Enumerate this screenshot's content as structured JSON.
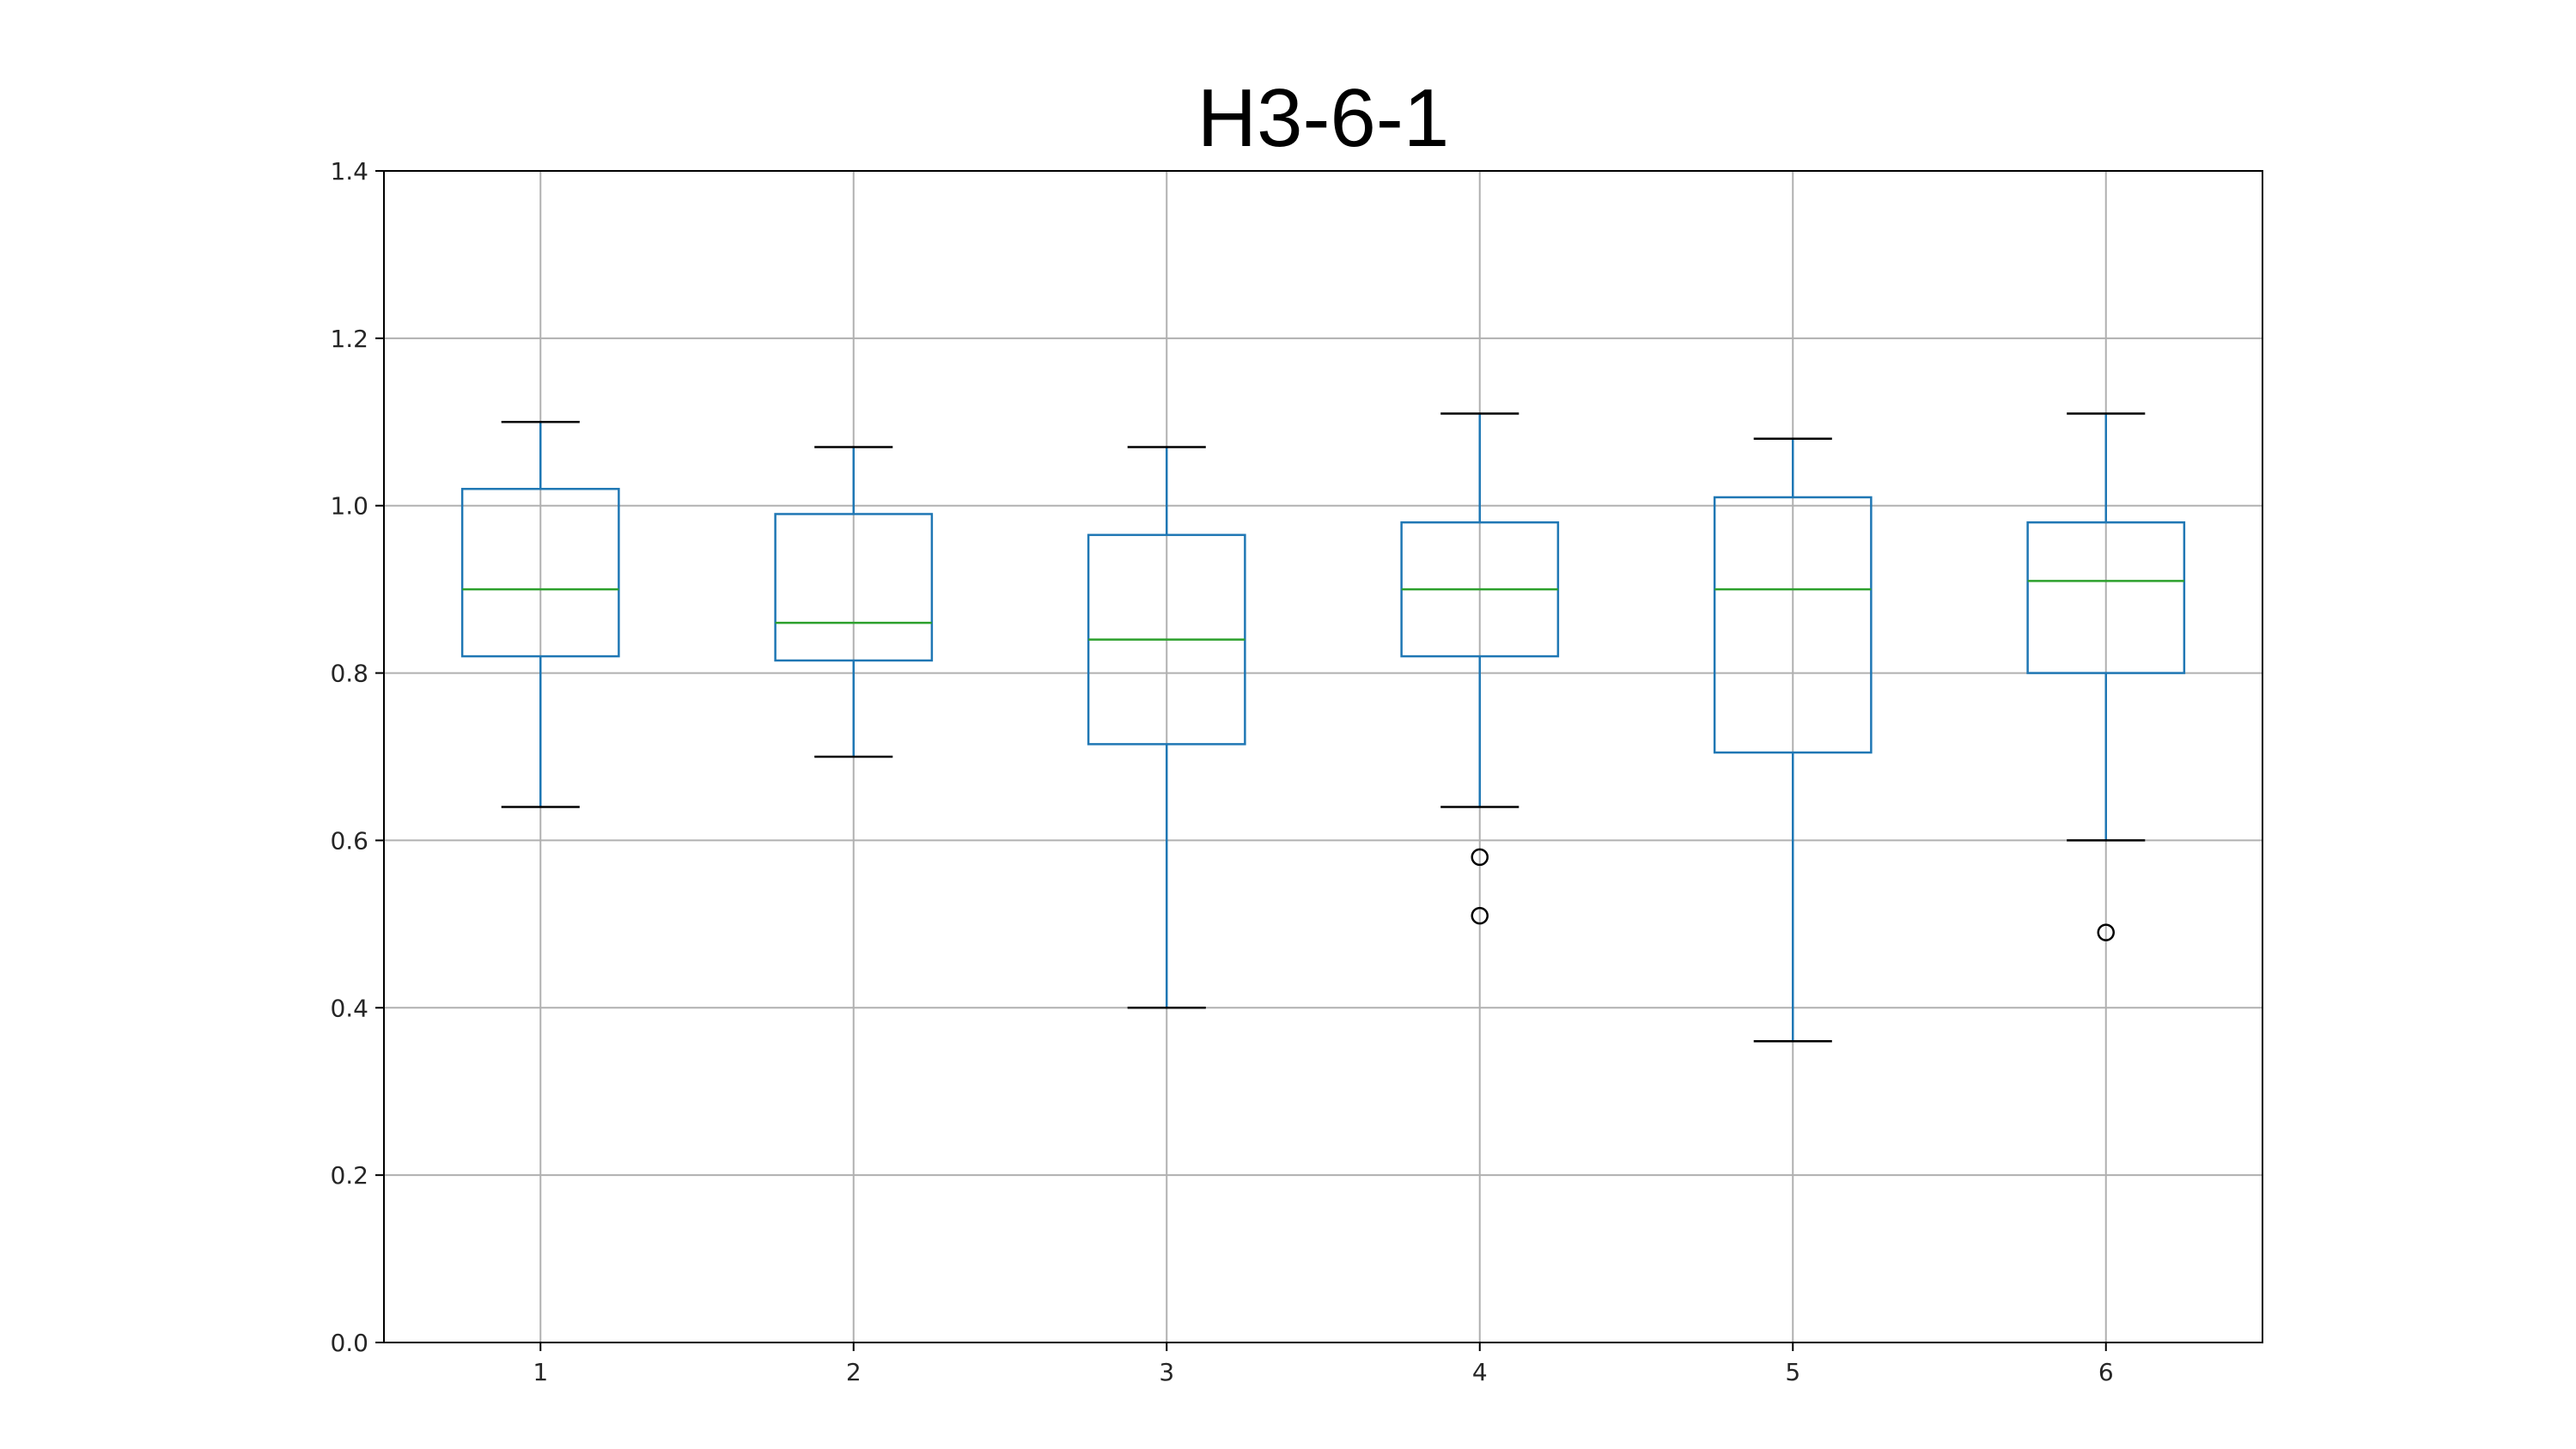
{
  "chart_data": {
    "type": "box",
    "title": "H3-6-1",
    "xlabel": "",
    "ylabel": "",
    "ylim": [
      0.0,
      1.4
    ],
    "y_ticks": [
      "0.0",
      "0.2",
      "0.4",
      "0.6",
      "0.8",
      "1.0",
      "1.2",
      "1.4"
    ],
    "grid": true,
    "legend": "none",
    "categories": [
      "1",
      "2",
      "3",
      "4",
      "5",
      "6"
    ],
    "boxes": [
      {
        "category": "1",
        "whisker_low": 0.64,
        "q1": 0.82,
        "median": 0.9,
        "q3": 1.02,
        "whisker_high": 1.1,
        "outliers": []
      },
      {
        "category": "2",
        "whisker_low": 0.7,
        "q1": 0.815,
        "median": 0.86,
        "q3": 0.99,
        "whisker_high": 1.07,
        "outliers": []
      },
      {
        "category": "3",
        "whisker_low": 0.4,
        "q1": 0.715,
        "median": 0.84,
        "q3": 0.965,
        "whisker_high": 1.07,
        "outliers": []
      },
      {
        "category": "4",
        "whisker_low": 0.64,
        "q1": 0.82,
        "median": 0.9,
        "q3": 0.98,
        "whisker_high": 1.11,
        "outliers": [
          0.58,
          0.51
        ]
      },
      {
        "category": "5",
        "whisker_low": 0.36,
        "q1": 0.705,
        "median": 0.9,
        "q3": 1.01,
        "whisker_high": 1.08,
        "outliers": []
      },
      {
        "category": "6",
        "whisker_low": 0.6,
        "q1": 0.8,
        "median": 0.91,
        "q3": 0.98,
        "whisker_high": 1.11,
        "outliers": [
          0.49
        ]
      }
    ],
    "colors": {
      "box": "#1f77b4",
      "median": "#2ca02c",
      "cap": "#000000",
      "grid": "#b0b0b0",
      "outlier": "#000000"
    }
  }
}
